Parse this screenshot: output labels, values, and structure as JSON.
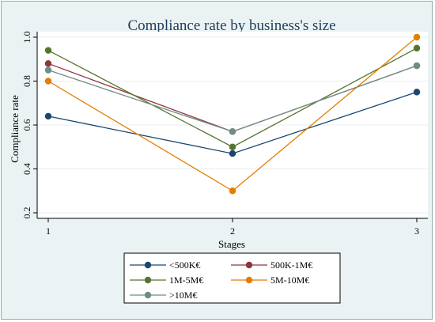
{
  "chart_data": {
    "type": "line",
    "title": "Compliance rate by business's size",
    "xlabel": "Stages",
    "ylabel": "Compliance rate",
    "x": [
      1,
      2,
      3
    ],
    "x_ticks": [
      "1",
      "2",
      "3"
    ],
    "y_ticks": [
      "0.2",
      "0.4",
      "0.6",
      "0.8",
      "1.0"
    ],
    "xlim": [
      1,
      3
    ],
    "ylim": [
      0.2,
      1.0
    ],
    "grid": "horizontal",
    "legend_position": "bottom",
    "series": [
      {
        "name": "<500K€",
        "color": "#1a476f",
        "values": [
          0.64,
          0.47,
          0.75
        ]
      },
      {
        "name": "500K-1M€",
        "color": "#90353b",
        "values": [
          0.88,
          0.57,
          0.87
        ]
      },
      {
        "name": "1M-5M€",
        "color": "#55752f",
        "values": [
          0.94,
          0.5,
          0.95
        ]
      },
      {
        "name": "5M-10M€",
        "color": "#e37e00",
        "values": [
          0.8,
          0.3,
          1.0
        ]
      },
      {
        "name": ">10M€",
        "color": "#6e8e84",
        "values": [
          0.85,
          0.57,
          0.87
        ]
      }
    ]
  }
}
